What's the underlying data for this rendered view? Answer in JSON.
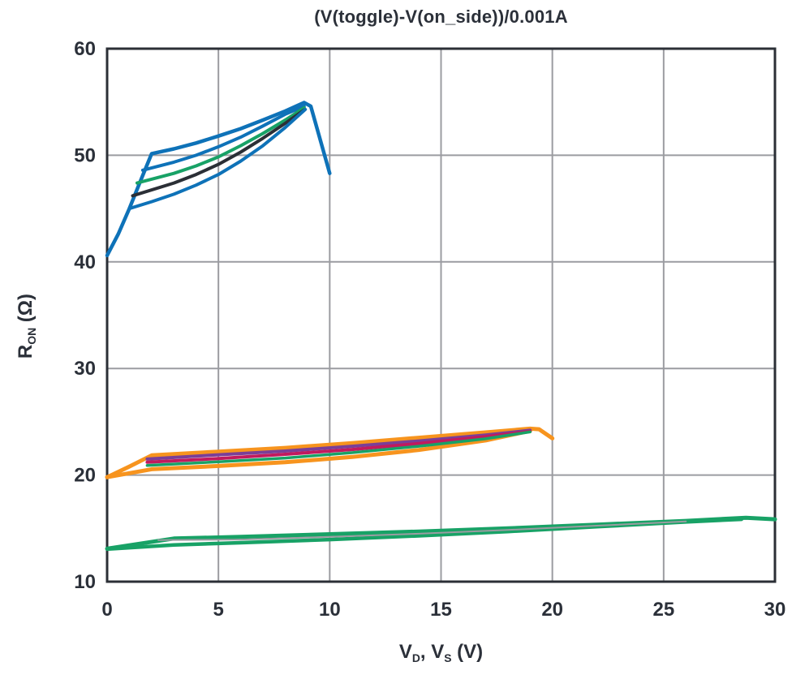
{
  "page": {
    "background": "#ffffff"
  },
  "chart_data": {
    "type": "line",
    "title": "(V(toggle)-V(on_side))/0.001A",
    "xlabel": "V_D, V_S (V)",
    "ylabel": "R_ON (Ω)",
    "xlabel_parts": [
      {
        "text": "V"
      },
      {
        "text": "D",
        "sub": true
      },
      {
        "text": ", V"
      },
      {
        "text": "S",
        "sub": true
      },
      {
        "text": " (V)"
      }
    ],
    "ylabel_parts": [
      {
        "text": "R"
      },
      {
        "text": "ON",
        "sub": true
      },
      {
        "text": " (Ω)"
      }
    ],
    "xlim": [
      0,
      30
    ],
    "ylim": [
      10,
      60
    ],
    "xticks": [
      0,
      5,
      10,
      15,
      20,
      25,
      30
    ],
    "yticks": [
      10,
      20,
      30,
      40,
      50,
      60
    ],
    "grid": true,
    "legend": "none",
    "axis_color": "#2b2f36",
    "grid_color": "#9b9ca1",
    "text_color": "#2b3039",
    "colors": {
      "blue": "#0e72b8",
      "green": "#18a266",
      "black": "#2b2f36",
      "orange": "#f7941e",
      "purple": "#7a3f98",
      "crimson": "#c11a5e",
      "gray": "#9b9ca1"
    },
    "series": [
      {
        "name": "cluster1-blue-outer-loop",
        "color": "blue",
        "width": 4.5,
        "points": [
          [
            0,
            40.6
          ],
          [
            0.5,
            42.6
          ],
          [
            1,
            45.0
          ],
          [
            1.5,
            47.6
          ],
          [
            2,
            50.15
          ],
          [
            3,
            50.6
          ],
          [
            4,
            51.15
          ],
          [
            5,
            51.8
          ],
          [
            6,
            52.5
          ],
          [
            7,
            53.3
          ],
          [
            8,
            54.15
          ],
          [
            8.85,
            54.95
          ],
          [
            9.15,
            54.6
          ],
          [
            10,
            48.3
          ]
        ]
      },
      {
        "name": "cluster1-blue-inner-upper",
        "color": "blue",
        "width": 4,
        "points": [
          [
            1.6,
            48.6
          ],
          [
            3,
            49.35
          ],
          [
            4,
            50.0
          ],
          [
            5,
            50.8
          ],
          [
            6,
            51.7
          ],
          [
            7,
            52.75
          ],
          [
            8,
            53.85
          ],
          [
            8.85,
            54.6
          ]
        ]
      },
      {
        "name": "cluster1-green",
        "color": "green",
        "width": 4,
        "points": [
          [
            1.35,
            47.4
          ],
          [
            3,
            48.3
          ],
          [
            4,
            49.0
          ],
          [
            5,
            49.85
          ],
          [
            6,
            50.9
          ],
          [
            7,
            52.05
          ],
          [
            8,
            53.3
          ],
          [
            8.85,
            54.45
          ]
        ]
      },
      {
        "name": "cluster1-black",
        "color": "black",
        "width": 4,
        "points": [
          [
            1.15,
            46.2
          ],
          [
            3,
            47.4
          ],
          [
            4,
            48.2
          ],
          [
            5,
            49.15
          ],
          [
            6,
            50.3
          ],
          [
            7,
            51.6
          ],
          [
            8,
            53.0
          ],
          [
            8.85,
            54.25
          ]
        ]
      },
      {
        "name": "cluster1-blue-inner-lower",
        "color": "blue",
        "width": 4,
        "points": [
          [
            1,
            45.0
          ],
          [
            2,
            45.65
          ],
          [
            3,
            46.35
          ],
          [
            4,
            47.2
          ],
          [
            5,
            48.2
          ],
          [
            6,
            49.45
          ],
          [
            7,
            50.9
          ],
          [
            8,
            52.6
          ],
          [
            8.9,
            54.3
          ]
        ]
      },
      {
        "name": "cluster2-orange-upper-loop",
        "color": "orange",
        "width": 5,
        "points": [
          [
            0,
            19.8
          ],
          [
            1,
            20.8
          ],
          [
            2,
            21.85
          ],
          [
            5,
            22.2
          ],
          [
            8,
            22.55
          ],
          [
            11,
            23.0
          ],
          [
            14,
            23.5
          ],
          [
            17,
            24.0
          ],
          [
            19,
            24.35
          ],
          [
            19.4,
            24.3
          ],
          [
            20,
            23.45
          ]
        ]
      },
      {
        "name": "cluster2-orange-lower",
        "color": "orange",
        "width": 5,
        "points": [
          [
            0,
            19.8
          ],
          [
            2,
            20.55
          ],
          [
            5,
            20.85
          ],
          [
            8,
            21.2
          ],
          [
            11,
            21.7
          ],
          [
            14,
            22.35
          ],
          [
            17,
            23.25
          ],
          [
            19,
            24.15
          ]
        ]
      },
      {
        "name": "cluster2-purple",
        "color": "purple",
        "width": 4,
        "points": [
          [
            1.8,
            21.5
          ],
          [
            5,
            21.9
          ],
          [
            8,
            22.25
          ],
          [
            11,
            22.7
          ],
          [
            14,
            23.2
          ],
          [
            17,
            23.75
          ],
          [
            19,
            24.2
          ]
        ]
      },
      {
        "name": "cluster2-crimson",
        "color": "crimson",
        "width": 4,
        "points": [
          [
            1.8,
            21.2
          ],
          [
            5,
            21.55
          ],
          [
            8,
            21.95
          ],
          [
            11,
            22.4
          ],
          [
            14,
            22.95
          ],
          [
            17,
            23.6
          ],
          [
            19,
            24.1
          ]
        ]
      },
      {
        "name": "cluster2-teal",
        "color": "green",
        "width": 3.5,
        "points": [
          [
            1.8,
            20.9
          ],
          [
            5,
            21.25
          ],
          [
            8,
            21.6
          ],
          [
            11,
            22.1
          ],
          [
            14,
            22.7
          ],
          [
            17,
            23.4
          ],
          [
            19,
            24.05
          ]
        ]
      },
      {
        "name": "cluster3-green-upper-loop",
        "color": "green",
        "width": 5,
        "points": [
          [
            0,
            13.1
          ],
          [
            3,
            14.05
          ],
          [
            6,
            14.2
          ],
          [
            10,
            14.45
          ],
          [
            14,
            14.7
          ],
          [
            18,
            15.0
          ],
          [
            22,
            15.35
          ],
          [
            26,
            15.7
          ],
          [
            28.7,
            16.0
          ],
          [
            30,
            15.85
          ]
        ]
      },
      {
        "name": "cluster3-green-lower",
        "color": "green",
        "width": 4.5,
        "points": [
          [
            0,
            13.05
          ],
          [
            3,
            13.45
          ],
          [
            6,
            13.65
          ],
          [
            10,
            13.95
          ],
          [
            14,
            14.3
          ],
          [
            18,
            14.7
          ],
          [
            22,
            15.15
          ],
          [
            26,
            15.6
          ],
          [
            28.5,
            15.85
          ]
        ]
      },
      {
        "name": "cluster3-gray-inner",
        "color": "gray",
        "width": 2,
        "points": [
          [
            2.3,
            13.9
          ],
          [
            6,
            13.95
          ],
          [
            10,
            14.2
          ],
          [
            14,
            14.5
          ],
          [
            18,
            14.85
          ],
          [
            22,
            15.25
          ],
          [
            26,
            15.65
          ]
        ]
      }
    ]
  }
}
